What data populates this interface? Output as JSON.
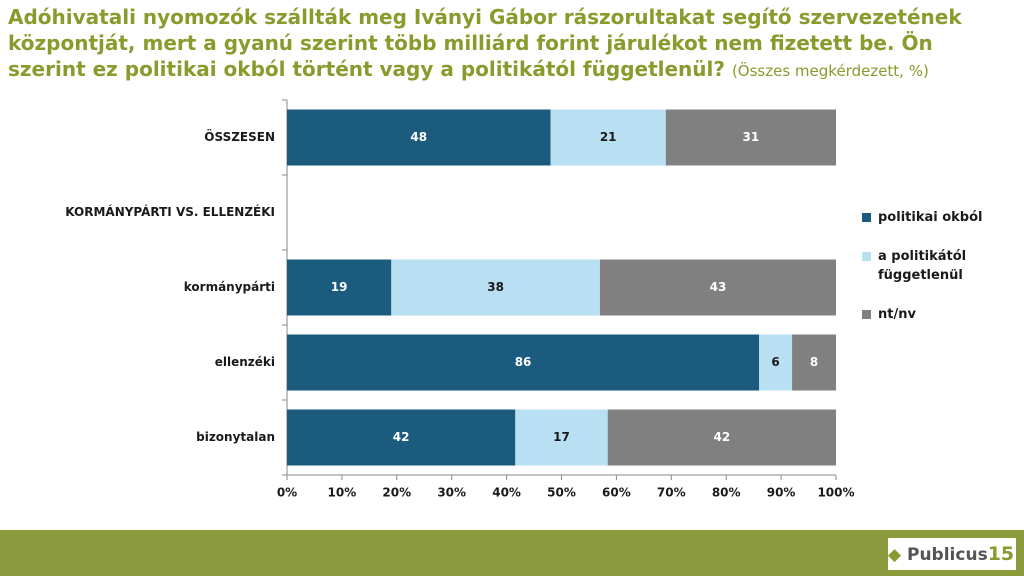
{
  "chart_data": {
    "type": "stacked100-hbar",
    "title": "Adóhivatali nyomozók szállták meg Iványi Gábor rászorultakat segítő szervezetének központját, mert a gyanú szerint több milliárd forint járulékot nem fizetett be. Ön szerint ez politikai okból történt vagy a politikától függetlenül?",
    "subtitle": "(Összes megkérdezett, %)",
    "categories": [
      "ÖSSZESEN",
      "KORMÁNYPÁRTI VS. ELLENZÉKI",
      "kormánypárti",
      "ellenzéki",
      "bizonytalan"
    ],
    "series": [
      {
        "name": "politikai okból",
        "color": "#1a5b7e",
        "label_color": "#ffffff",
        "values": [
          48,
          null,
          19,
          86,
          42
        ]
      },
      {
        "name": "a politikától függetlenül",
        "color": "#b8dff2",
        "label_color": "#1a1a1a",
        "values": [
          21,
          null,
          38,
          6,
          17
        ]
      },
      {
        "name": "nt/nv",
        "color": "#808080",
        "label_color": "#ffffff",
        "values": [
          31,
          null,
          43,
          8,
          42
        ]
      }
    ],
    "xlim": [
      0,
      100
    ],
    "xticks": [
      {
        "value": 0,
        "label": "0%"
      },
      {
        "value": 10,
        "label": "10%"
      },
      {
        "value": 20,
        "label": "20%"
      },
      {
        "value": 30,
        "label": "30%"
      },
      {
        "value": 40,
        "label": "40%"
      },
      {
        "value": 50,
        "label": "50%"
      },
      {
        "value": 60,
        "label": "60%"
      },
      {
        "value": 70,
        "label": "70%"
      },
      {
        "value": 80,
        "label": "80%"
      },
      {
        "value": 90,
        "label": "90%"
      },
      {
        "value": 100,
        "label": "100%"
      }
    ],
    "legend": "right"
  },
  "logo": {
    "name": "Publicus",
    "number": "15"
  }
}
